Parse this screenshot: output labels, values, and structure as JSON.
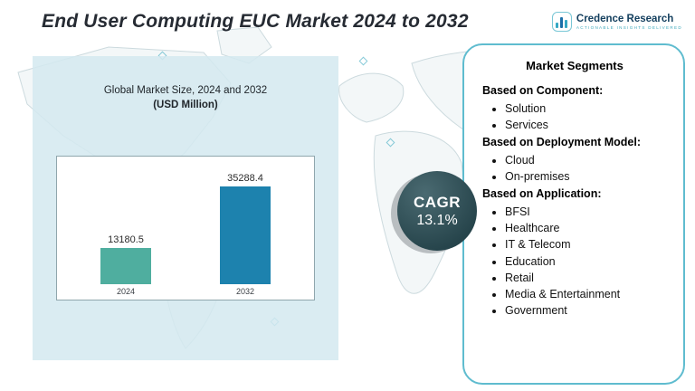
{
  "title": "End User Computing EUC Market 2024 to 2032",
  "logo": {
    "name": "Credence Research",
    "tagline": "Actionable Insights Delivered"
  },
  "chart_panel": {
    "heading_line1": "Global Market Size, 2024 and 2032",
    "heading_line2": "(USD Million)"
  },
  "chart_data": {
    "type": "bar",
    "title": "Global Market Size, 2024 and 2032 (USD Million)",
    "categories": [
      "2024",
      "2032"
    ],
    "values": [
      13180.5,
      35288.4
    ],
    "xlabel": "",
    "ylabel": "USD Million",
    "ylim": [
      0,
      40000
    ],
    "bar_colors": [
      "#4fae9f",
      "#1d82ae"
    ],
    "grid": false,
    "legend": "none"
  },
  "cagr": {
    "label": "CAGR",
    "value": "13.1%"
  },
  "segments": {
    "title": "Market Segments",
    "sections": [
      {
        "heading": "Based on Component:",
        "items": [
          "Solution",
          "Services"
        ]
      },
      {
        "heading": "Based on Deployment Model:",
        "items": [
          "Cloud",
          "On-premises"
        ]
      },
      {
        "heading": "Based on Application:",
        "items": [
          "BFSI",
          "Healthcare",
          "IT & Telecom",
          "Education",
          "Retail",
          "Media & Entertainment",
          "Government"
        ]
      }
    ]
  },
  "colors": {
    "panel_background": "#d3e9f0",
    "segments_border": "#5fbccf",
    "cagr_badge": "#26444b",
    "bar_2024": "#4fae9f",
    "bar_2032": "#1d82ae"
  }
}
